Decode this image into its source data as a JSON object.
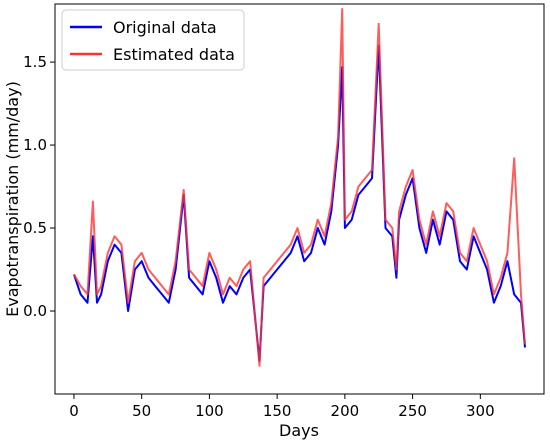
{
  "chart_data": {
    "type": "line",
    "title": "",
    "xlabel": "Days",
    "ylabel": "Evapotranspiration (mm/day)",
    "xlim": [
      -14,
      347
    ],
    "ylim": [
      -0.5,
      1.85
    ],
    "xticks": [
      0,
      50,
      100,
      150,
      200,
      250,
      300
    ],
    "yticks": [
      0.0,
      0.5,
      1.0,
      1.5
    ],
    "ytick_labels": [
      "0.0",
      "0.5",
      "1.0",
      "1.5"
    ],
    "grid": false,
    "legend_position": "top-left",
    "series": [
      {
        "name": "Original data",
        "color": "#0000ff",
        "x": [
          0,
          5,
          10,
          14,
          17,
          20,
          25,
          30,
          35,
          40,
          45,
          50,
          55,
          60,
          65,
          70,
          75,
          81,
          85,
          90,
          95,
          100,
          105,
          110,
          115,
          120,
          125,
          130,
          137,
          140,
          145,
          150,
          155,
          160,
          165,
          170,
          175,
          180,
          185,
          190,
          195,
          198,
          200,
          205,
          210,
          215,
          220,
          225,
          230,
          235,
          238,
          240,
          245,
          250,
          255,
          260,
          265,
          270,
          275,
          280,
          285,
          290,
          295,
          300,
          305,
          310,
          315,
          320,
          325,
          330,
          333
        ],
        "y": [
          0.22,
          0.1,
          0.05,
          0.45,
          0.05,
          0.1,
          0.3,
          0.4,
          0.35,
          0.0,
          0.25,
          0.3,
          0.2,
          0.15,
          0.1,
          0.05,
          0.25,
          0.7,
          0.2,
          0.15,
          0.1,
          0.3,
          0.2,
          0.05,
          0.15,
          0.1,
          0.2,
          0.25,
          -0.3,
          0.15,
          0.2,
          0.25,
          0.3,
          0.35,
          0.45,
          0.3,
          0.35,
          0.5,
          0.4,
          0.6,
          1.0,
          1.47,
          0.5,
          0.55,
          0.7,
          0.75,
          0.8,
          1.6,
          0.5,
          0.45,
          0.2,
          0.55,
          0.7,
          0.8,
          0.5,
          0.35,
          0.55,
          0.4,
          0.6,
          0.55,
          0.3,
          0.25,
          0.45,
          0.35,
          0.25,
          0.05,
          0.15,
          0.3,
          0.1,
          0.05,
          -0.22
        ]
      },
      {
        "name": "Estimated data",
        "color": "#ff3333",
        "x": [
          0,
          5,
          10,
          14,
          17,
          20,
          25,
          30,
          35,
          40,
          45,
          50,
          55,
          60,
          65,
          70,
          75,
          81,
          85,
          90,
          95,
          100,
          105,
          110,
          115,
          120,
          125,
          130,
          137,
          140,
          145,
          150,
          155,
          160,
          165,
          170,
          175,
          180,
          185,
          190,
          195,
          198,
          200,
          205,
          210,
          215,
          220,
          225,
          230,
          235,
          238,
          240,
          245,
          250,
          255,
          260,
          265,
          270,
          275,
          280,
          285,
          290,
          295,
          300,
          305,
          310,
          315,
          320,
          325,
          330,
          333
        ],
        "y": [
          0.22,
          0.15,
          0.1,
          0.66,
          0.1,
          0.15,
          0.35,
          0.45,
          0.4,
          0.05,
          0.3,
          0.35,
          0.25,
          0.2,
          0.15,
          0.1,
          0.3,
          0.73,
          0.25,
          0.2,
          0.15,
          0.35,
          0.25,
          0.1,
          0.2,
          0.15,
          0.25,
          0.3,
          -0.33,
          0.2,
          0.25,
          0.3,
          0.35,
          0.4,
          0.5,
          0.35,
          0.4,
          0.55,
          0.45,
          0.65,
          1.05,
          1.82,
          0.55,
          0.6,
          0.75,
          0.8,
          0.85,
          1.73,
          0.55,
          0.5,
          0.25,
          0.6,
          0.75,
          0.85,
          0.55,
          0.4,
          0.6,
          0.45,
          0.65,
          0.6,
          0.35,
          0.3,
          0.5,
          0.4,
          0.3,
          0.1,
          0.2,
          0.35,
          0.92,
          0.1,
          -0.2
        ]
      }
    ]
  }
}
